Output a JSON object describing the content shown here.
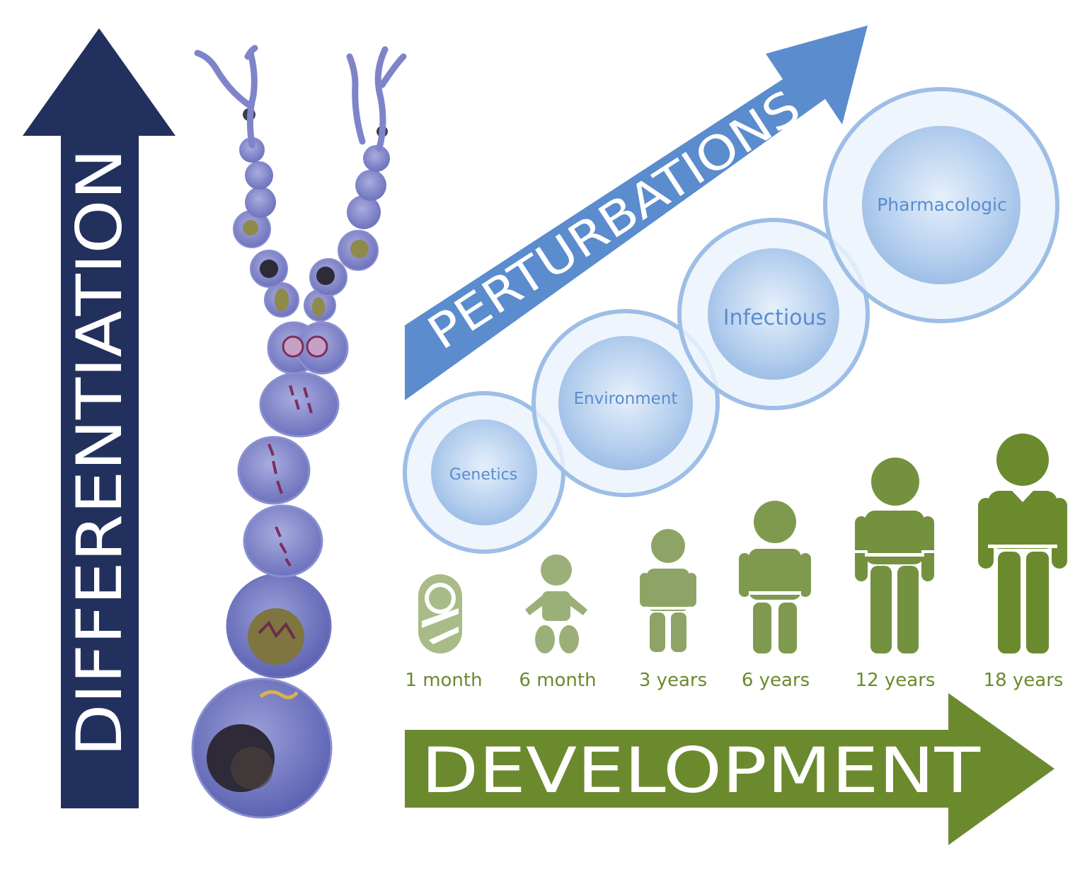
{
  "arrows": {
    "differentiation": {
      "label": "DIFFERENTIATION",
      "color": "#22305e"
    },
    "perturbations": {
      "label": "PERTURBATIONS",
      "color": "#5b8ccd"
    },
    "development": {
      "label": "DEVELOPMENT",
      "color": "#6b8a2e"
    }
  },
  "perturbation_factors": [
    {
      "label": "Genetics"
    },
    {
      "label": "Environment"
    },
    {
      "label": "Infectious"
    },
    {
      "label": "Pharmacologic"
    }
  ],
  "ages": [
    {
      "label": "1 month",
      "icon": "swaddled-infant-icon",
      "color": "#a9bb86"
    },
    {
      "label": "6 month",
      "icon": "crawling-baby-icon",
      "color": "#9bb078"
    },
    {
      "label": "3 years",
      "icon": "toddler-icon",
      "color": "#8ea466"
    },
    {
      "label": "6 years",
      "icon": "child-icon",
      "color": "#7f9a4f"
    },
    {
      "label": "12 years",
      "icon": "adolescent-icon",
      "color": "#74913f"
    },
    {
      "label": "18 years",
      "icon": "adult-icon",
      "color": "#6b8a2e"
    }
  ],
  "colors": {
    "age_label": "#6b8a2e",
    "cell_body": "#7f84c9",
    "cell_nucleus": "#2e2a38",
    "factor_text": "#5b8ccd"
  }
}
